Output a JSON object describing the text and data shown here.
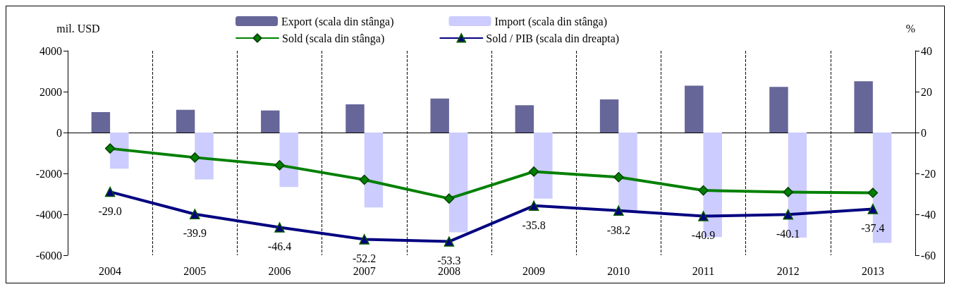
{
  "chart_data": {
    "type": "bar",
    "categories": [
      "2004",
      "2005",
      "2006",
      "2007",
      "2008",
      "2009",
      "2010",
      "2011",
      "2012",
      "2013"
    ],
    "ylabel": "mil. USD",
    "y2label": "%",
    "ylim": [
      -6000,
      4000
    ],
    "yticks": [
      -6000,
      -4000,
      -2000,
      0,
      2000,
      4000
    ],
    "y2lim": [
      -60,
      40
    ],
    "y2ticks": [
      -60,
      -40,
      -20,
      0,
      20,
      40
    ],
    "grid": "x",
    "legend": "top",
    "series": [
      {
        "name": "Export (scala din stânga)",
        "color": "#666699",
        "values": [
          1000,
          1110,
          1080,
          1380,
          1660,
          1340,
          1620,
          2290,
          2230,
          2510
        ]
      },
      {
        "name": "Import (scala din stânga)",
        "color": "#ccccff",
        "values": [
          -1770,
          -2290,
          -2660,
          -3660,
          -4880,
          -3230,
          -3820,
          -5110,
          -5140,
          -5400
        ]
      },
      {
        "name": "Sold (scala din stânga)",
        "type": "line",
        "color": "#008000",
        "marker": "diamond",
        "values": [
          -780,
          -1220,
          -1600,
          -2310,
          -3230,
          -1910,
          -2180,
          -2830,
          -2910,
          -2950
        ]
      },
      {
        "name": "Sold / PIB (scala din dreapta)",
        "type": "line",
        "axis": "y2",
        "color": "#000080",
        "marker": "triangle",
        "values": [
          -29.0,
          -39.9,
          -46.4,
          -52.2,
          -53.3,
          -35.8,
          -38.2,
          -40.9,
          -40.1,
          -37.4
        ],
        "value_labels": [
          "-29.0",
          "-39.9",
          "-46.4",
          "-52.2",
          "-53.3",
          "-35.8",
          "-38.2",
          "-40.9",
          "-40.1",
          "-37.4"
        ]
      }
    ]
  }
}
